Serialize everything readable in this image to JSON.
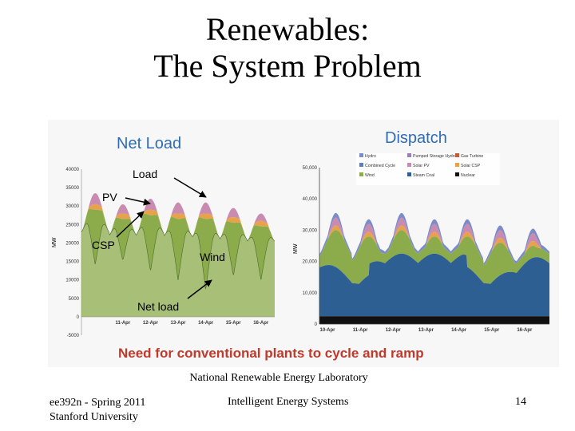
{
  "title": {
    "line1": "Renewables:",
    "line2": "The System Problem"
  },
  "caption": "Need for conventional plants to cycle and ramp",
  "credit": "National Renewable Energy Laboratory",
  "footer": {
    "left_line1": "ee392n - Spring 2011",
    "left_line2": "Stanford University",
    "center": "Intelligent Energy Systems",
    "page": "14"
  },
  "colors": {
    "title_blue": "#2f6cb4",
    "caption_red": "#c0392b",
    "wind": "#8cac4c",
    "csp": "#e8a24a",
    "pv": "#c98bb0",
    "hydro": "#7c8cc8",
    "steam_coal": "#2e5f92",
    "nuclear": "#111111",
    "combined_cycle": "#5f7fb0",
    "pumped_storage": "#9c7fb8",
    "gas_turbine": "#c85a3a"
  },
  "chart_data": [
    {
      "type": "area",
      "title": "Net Load",
      "ylabel": "MW",
      "ylim": [
        -5000,
        40000
      ],
      "yticks": [
        "-5000",
        "0",
        "5000",
        "10000",
        "15000",
        "20000",
        "25000",
        "30000",
        "35000",
        "40000"
      ],
      "x_tick_labels": [
        "11-Apr",
        "12-Apr",
        "13-Apr",
        "14-Apr",
        "15-Apr",
        "16-Apr"
      ],
      "annotations": [
        "Load",
        "PV",
        "CSP",
        "Wind",
        "Net load"
      ],
      "daily_peak_load_mw": [
        33500,
        30500,
        32000,
        31000,
        31000,
        29500,
        28000
      ],
      "daily_min_load_mw": [
        23000,
        22000,
        22500,
        22000,
        21500,
        21000,
        20500
      ],
      "series": [
        {
          "name": "Wind",
          "daily_peak_mw": [
            28000,
            26500,
            27500,
            26000,
            26500,
            25500,
            24500
          ]
        },
        {
          "name": "CSP",
          "daily_peak_mw": [
            1500,
            1500,
            1500,
            1500,
            1500,
            1500,
            1500
          ]
        },
        {
          "name": "PV",
          "daily_peak_mw": [
            3000,
            2500,
            3000,
            3000,
            3000,
            2500,
            2000
          ]
        },
        {
          "name": "Net load",
          "daily_min_mw": [
            6000,
            9000,
            4000,
            1000,
            -3500,
            3000,
            2000
          ]
        }
      ]
    },
    {
      "type": "area",
      "title": "Dispatch",
      "ylabel": "MW",
      "ylim": [
        0,
        50000
      ],
      "yticks": [
        "0",
        "10,000",
        "20,000",
        "30,000",
        "40,000",
        "50,000"
      ],
      "x_tick_labels": [
        "10-Apr",
        "11-Apr",
        "12-Apr",
        "13-Apr",
        "14-Apr",
        "15-Apr",
        "16-Apr"
      ],
      "legend": [
        "Hydro",
        "Pumped Storage Hydro",
        "Gas Turbine",
        "Combined Cycle",
        "Solar PV",
        "Solar CSP",
        "Wind",
        "Steam Coal",
        "Nuclear"
      ],
      "legend_position": "top-left",
      "series": [
        {
          "name": "Nuclear",
          "typical_mw": 2500
        },
        {
          "name": "Steam Coal",
          "typical_mw": 20000
        },
        {
          "name": "Wind",
          "daily_peak_mw": [
            30000,
            28000,
            30000,
            28000,
            28000,
            26000,
            25000
          ]
        },
        {
          "name": "Solar CSP",
          "typical_mw": 1500
        },
        {
          "name": "Solar PV",
          "typical_mw": 2500
        },
        {
          "name": "Hydro",
          "typical_mw": 1500
        }
      ]
    }
  ]
}
